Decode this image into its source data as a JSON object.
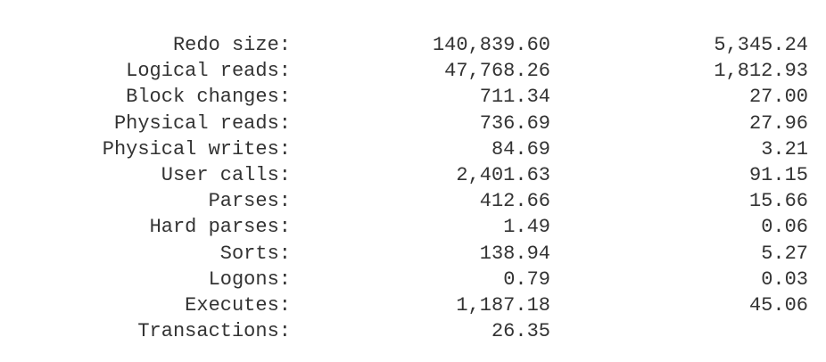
{
  "rows": [
    {
      "label": "Redo size:",
      "per_second": "140,839.60",
      "per_transaction": "5,345.24"
    },
    {
      "label": "Logical reads:",
      "per_second": "47,768.26",
      "per_transaction": "1,812.93"
    },
    {
      "label": "Block changes:",
      "per_second": "711.34",
      "per_transaction": "27.00"
    },
    {
      "label": "Physical reads:",
      "per_second": "736.69",
      "per_transaction": "27.96"
    },
    {
      "label": "Physical writes:",
      "per_second": "84.69",
      "per_transaction": "3.21"
    },
    {
      "label": "User calls:",
      "per_second": "2,401.63",
      "per_transaction": "91.15"
    },
    {
      "label": "Parses:",
      "per_second": "412.66",
      "per_transaction": "15.66"
    },
    {
      "label": "Hard parses:",
      "per_second": "1.49",
      "per_transaction": "0.06"
    },
    {
      "label": "Sorts:",
      "per_second": "138.94",
      "per_transaction": "5.27"
    },
    {
      "label": "Logons:",
      "per_second": "0.79",
      "per_transaction": "0.03"
    },
    {
      "label": "Executes:",
      "per_second": "1,187.18",
      "per_transaction": "45.06"
    },
    {
      "label": "Transactions:",
      "per_second": "26.35",
      "per_transaction": ""
    }
  ]
}
